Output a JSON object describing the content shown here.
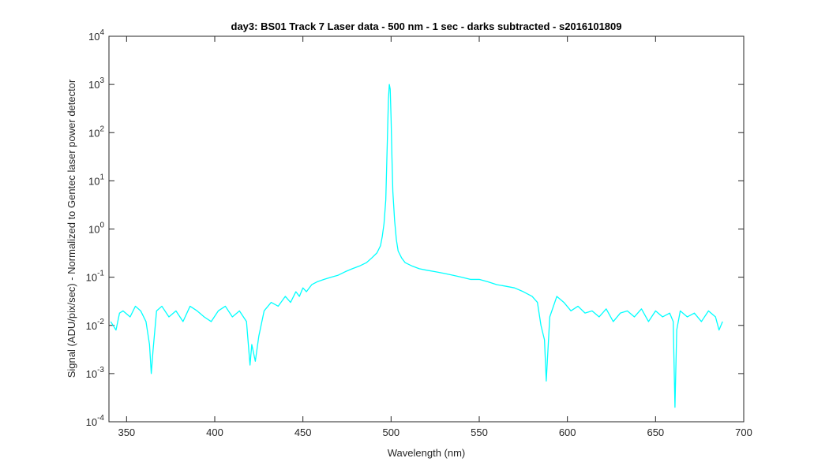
{
  "chart_data": {
    "type": "line",
    "title": "day3: BS01  Track 7 Laser data - 500 nm - 1 sec - darks subtracted - s2016101809",
    "xlabel": "Wavelength (nm)",
    "ylabel": "Signal (ADU/pix/sec) - Normalized to Gentec laser power detector",
    "xlim": [
      340,
      700
    ],
    "ylim": [
      0.0001,
      10000
    ],
    "yscale": "log",
    "grid": false,
    "legend": "none",
    "x_ticks": [
      350,
      400,
      450,
      500,
      550,
      600,
      650,
      700
    ],
    "y_ticks": [
      {
        "exp": -4,
        "base": "10",
        "power": "-4"
      },
      {
        "exp": -3,
        "base": "10",
        "power": "-3"
      },
      {
        "exp": -2,
        "base": "10",
        "power": "-2"
      },
      {
        "exp": -1,
        "base": "10",
        "power": "-1"
      },
      {
        "exp": 0,
        "base": "10",
        "power": "0"
      },
      {
        "exp": 1,
        "base": "10",
        "power": "1"
      },
      {
        "exp": 2,
        "base": "10",
        "power": "2"
      },
      {
        "exp": 3,
        "base": "10",
        "power": "3"
      },
      {
        "exp": 4,
        "base": "10",
        "power": "4"
      }
    ],
    "series": [
      {
        "color": "#00FFFF",
        "x": [
          341,
          344,
          346,
          348,
          352,
          355,
          358,
          361,
          363,
          364,
          365,
          367,
          370,
          374,
          378,
          382,
          386,
          390,
          394,
          398,
          402,
          406,
          410,
          414,
          418,
          420,
          421,
          423,
          425,
          428,
          432,
          436,
          440,
          443,
          446,
          448,
          450,
          452,
          455,
          458,
          462,
          466,
          470,
          474,
          478,
          482,
          486,
          489,
          492,
          494,
          495,
          496,
          497,
          497.5,
          498,
          498.5,
          499,
          499.5,
          500,
          500.5,
          501,
          502,
          503,
          504,
          506,
          508,
          512,
          516,
          520,
          525,
          530,
          535,
          540,
          545,
          550,
          555,
          560,
          565,
          570,
          575,
          580,
          583,
          585,
          587,
          588,
          590,
          594,
          598,
          602,
          606,
          610,
          614,
          618,
          622,
          626,
          630,
          634,
          638,
          642,
          646,
          650,
          654,
          658,
          660,
          661,
          662,
          664,
          668,
          672,
          676,
          680,
          684,
          686,
          688
        ],
        "y": [
          0.012,
          0.008,
          0.018,
          0.02,
          0.015,
          0.025,
          0.02,
          0.012,
          0.004,
          0.001,
          0.003,
          0.02,
          0.025,
          0.015,
          0.02,
          0.012,
          0.025,
          0.02,
          0.015,
          0.012,
          0.02,
          0.025,
          0.015,
          0.02,
          0.012,
          0.0015,
          0.004,
          0.0018,
          0.006,
          0.02,
          0.03,
          0.025,
          0.04,
          0.03,
          0.05,
          0.04,
          0.06,
          0.05,
          0.07,
          0.08,
          0.09,
          0.1,
          0.11,
          0.13,
          0.15,
          0.17,
          0.2,
          0.25,
          0.32,
          0.45,
          0.7,
          1.3,
          4,
          20,
          100,
          500,
          1000,
          800,
          200,
          30,
          6,
          1.5,
          0.6,
          0.35,
          0.25,
          0.2,
          0.17,
          0.15,
          0.14,
          0.13,
          0.12,
          0.11,
          0.1,
          0.09,
          0.09,
          0.08,
          0.07,
          0.065,
          0.06,
          0.05,
          0.04,
          0.03,
          0.01,
          0.005,
          0.0007,
          0.015,
          0.04,
          0.03,
          0.02,
          0.025,
          0.018,
          0.02,
          0.015,
          0.022,
          0.012,
          0.018,
          0.02,
          0.015,
          0.022,
          0.012,
          0.02,
          0.015,
          0.018,
          0.012,
          0.0002,
          0.008,
          0.02,
          0.015,
          0.018,
          0.012,
          0.02,
          0.015,
          0.008,
          0.012
        ]
      }
    ]
  }
}
